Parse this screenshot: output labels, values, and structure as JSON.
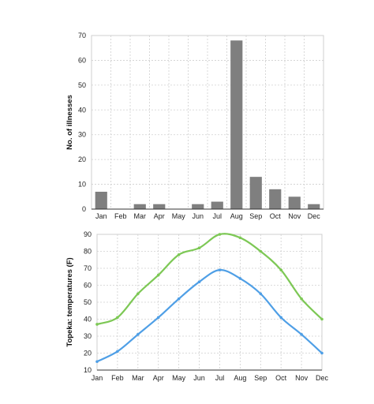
{
  "chart_data": [
    {
      "type": "bar",
      "title": "",
      "xlabel": "",
      "ylabel": "No. of illnesses",
      "ylim": [
        0,
        70
      ],
      "yticks": [
        0,
        10,
        20,
        30,
        40,
        50,
        60,
        70
      ],
      "grid": true,
      "categories": [
        "Jan",
        "Feb",
        "Mar",
        "Apr",
        "May",
        "Jun",
        "Jul",
        "Aug",
        "Sep",
        "Oct",
        "Nov",
        "Dec"
      ],
      "values": [
        7,
        0,
        2,
        2,
        0,
        2,
        3,
        68,
        13,
        8,
        5,
        2
      ],
      "color": "#7f7f7f"
    },
    {
      "type": "line",
      "title": "",
      "xlabel": "",
      "ylabel": "Topeka: temperatures (F)",
      "ylim": [
        10,
        90
      ],
      "yticks": [
        10,
        20,
        30,
        40,
        50,
        60,
        70,
        80,
        90
      ],
      "grid": true,
      "categories": [
        "Jan",
        "Feb",
        "Mar",
        "Apr",
        "May",
        "Jun",
        "Jul",
        "Aug",
        "Sep",
        "Oct",
        "Nov",
        "Dec"
      ],
      "series": [
        {
          "values": [
            37,
            41,
            55,
            66,
            78,
            82,
            90,
            88,
            80,
            69,
            52,
            40
          ],
          "color": "#7dc855"
        },
        {
          "values": [
            15,
            21,
            31,
            41,
            52,
            62,
            69,
            64,
            55,
            41,
            31,
            20
          ],
          "color": "#4f9fe6"
        }
      ]
    }
  ]
}
